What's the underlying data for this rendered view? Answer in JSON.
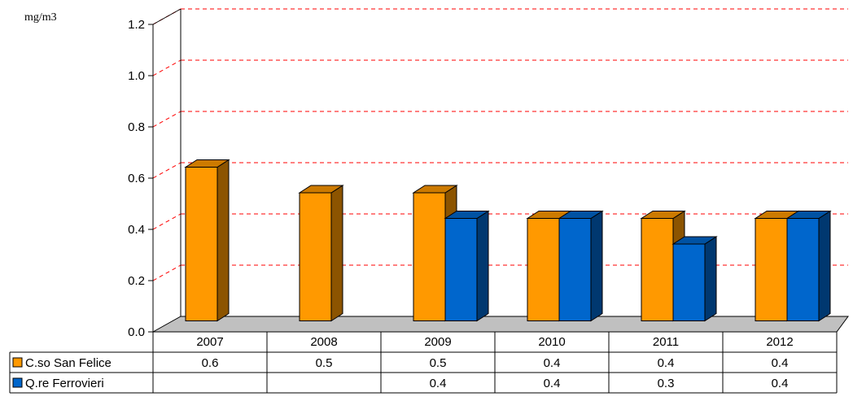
{
  "chart_data": {
    "type": "bar",
    "style": "3d-clustered-column",
    "unit_label": "mg/m3",
    "categories": [
      "2007",
      "2008",
      "2009",
      "2010",
      "2011",
      "2012"
    ],
    "series": [
      {
        "name": "C.so San Felice",
        "values": [
          0.6,
          0.5,
          0.5,
          0.4,
          0.4,
          0.4
        ],
        "labels": [
          "0.6",
          "0.5",
          "0.5",
          "0.4",
          "0.4",
          "0.4"
        ],
        "color": "#FF9900"
      },
      {
        "name": "Q.re Ferrovieri",
        "values": [
          null,
          null,
          0.4,
          0.4,
          0.3,
          0.4
        ],
        "labels": [
          "",
          "",
          "0.4",
          "0.4",
          "0.3",
          "0.4"
        ],
        "color": "#0066CC"
      }
    ],
    "y_ticks": [
      "0.0",
      "0.2",
      "0.4",
      "0.6",
      "0.8",
      "1.0",
      "1.2"
    ],
    "ylim": [
      0,
      1.2
    ],
    "grid": true,
    "grid_color": "#FF0000",
    "floor_color": "#C0C0C0",
    "data_table": true
  }
}
